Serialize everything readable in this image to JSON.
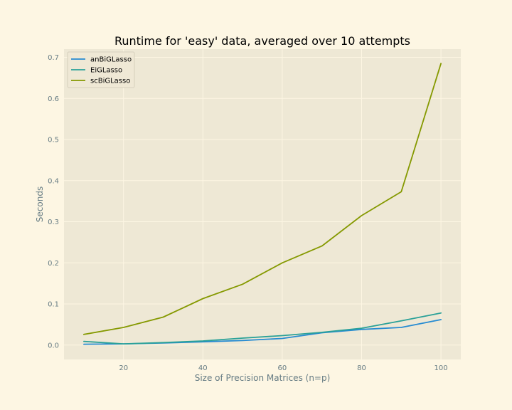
{
  "colors": {
    "figure_bg": "#fdf6e3",
    "plot_bg": "#eee8d5",
    "grid": "#fdf6e3",
    "text": "#657b83"
  },
  "chart_data": {
    "type": "line",
    "title": "Runtime for 'easy' data, averaged over 10 attempts",
    "xlabel": "Size of Precision Matrices (n=p)",
    "ylabel": "Seconds",
    "xlim": [
      5,
      105
    ],
    "ylim": [
      -0.035,
      0.72
    ],
    "xticks": [
      20,
      40,
      60,
      80,
      100
    ],
    "yticks": [
      0.0,
      0.1,
      0.2,
      0.3,
      0.4,
      0.5,
      0.6,
      0.7
    ],
    "xtick_labels": [
      "20",
      "40",
      "60",
      "80",
      "100"
    ],
    "ytick_labels": [
      "0.0",
      "0.1",
      "0.2",
      "0.3",
      "0.4",
      "0.5",
      "0.6",
      "0.7"
    ],
    "grid": true,
    "legend_position": "top-left",
    "x": [
      10,
      20,
      30,
      40,
      50,
      60,
      70,
      80,
      90,
      100
    ],
    "series": [
      {
        "name": "anBiGLasso",
        "color": "#268bd2",
        "values": [
          0.002,
          0.003,
          0.005,
          0.008,
          0.011,
          0.016,
          0.03,
          0.038,
          0.043,
          0.062
        ]
      },
      {
        "name": "EiGLasso",
        "color": "#2aa198",
        "values": [
          0.009,
          0.003,
          0.006,
          0.01,
          0.017,
          0.023,
          0.031,
          0.041,
          0.059,
          0.078
        ]
      },
      {
        "name": "scBiGLasso",
        "color": "#859900",
        "values": [
          0.026,
          0.043,
          0.068,
          0.113,
          0.148,
          0.2,
          0.241,
          0.315,
          0.373,
          0.685
        ]
      }
    ]
  }
}
